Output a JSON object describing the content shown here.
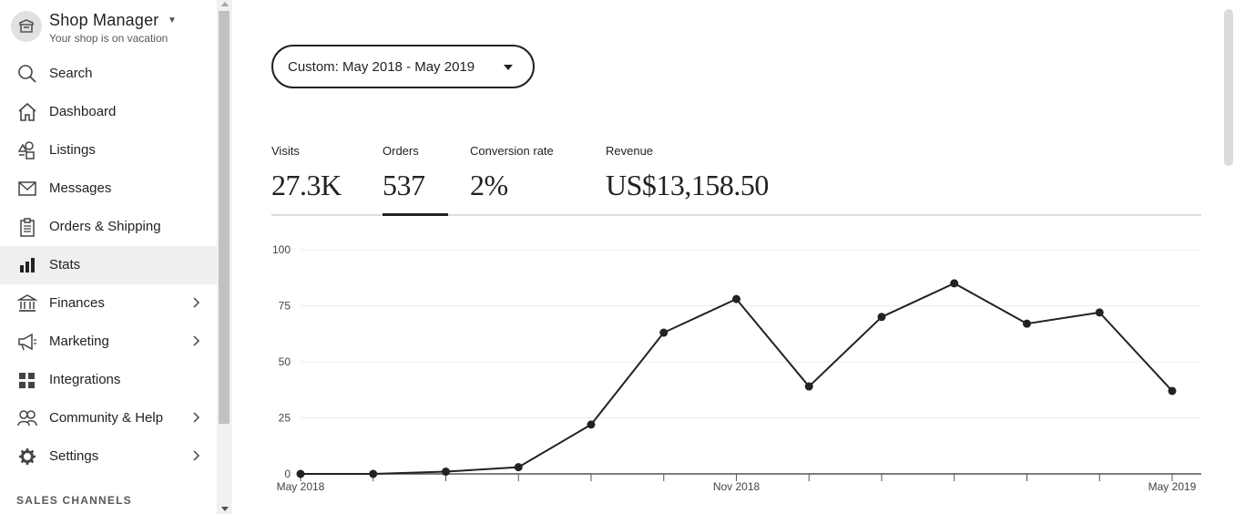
{
  "sidebar": {
    "brand": {
      "title": "Shop Manager",
      "subtitle": "Your shop is on vacation",
      "icon": "etsy-store-icon"
    },
    "items": [
      {
        "label": "Search",
        "icon": "search-icon",
        "has_submenu": false
      },
      {
        "label": "Dashboard",
        "icon": "home-icon",
        "has_submenu": false
      },
      {
        "label": "Listings",
        "icon": "listings-shapes-icon",
        "has_submenu": false
      },
      {
        "label": "Messages",
        "icon": "envelope-icon",
        "has_submenu": false
      },
      {
        "label": "Orders & Shipping",
        "icon": "clipboard-icon",
        "has_submenu": false
      },
      {
        "label": "Stats",
        "icon": "bar-chart-icon",
        "has_submenu": false,
        "active": true
      },
      {
        "label": "Finances",
        "icon": "bank-icon",
        "has_submenu": true
      },
      {
        "label": "Marketing",
        "icon": "megaphone-icon",
        "has_submenu": true
      },
      {
        "label": "Integrations",
        "icon": "grid-icon",
        "has_submenu": false
      },
      {
        "label": "Community & Help",
        "icon": "people-icon",
        "has_submenu": true
      },
      {
        "label": "Settings",
        "icon": "gear-icon",
        "has_submenu": true
      }
    ],
    "section_heading": "SALES CHANNELS"
  },
  "date_filter": {
    "label": "Custom: May 2018 - May 2019"
  },
  "stats_tabs": [
    {
      "label": "Visits",
      "value": "27.3K"
    },
    {
      "label": "Orders",
      "value": "537",
      "selected": true
    },
    {
      "label": "Conversion rate",
      "value": "2%"
    },
    {
      "label": "Revenue",
      "value": "US$13,158.50"
    }
  ],
  "colors": {
    "line": "#222222",
    "grid": "#ececec",
    "active_nav_bg": "#efefef"
  },
  "chart_data": {
    "type": "line",
    "title": "",
    "xlabel": "",
    "ylabel": "",
    "ylim": [
      0,
      100
    ],
    "yticks": [
      0,
      25,
      50,
      75,
      100
    ],
    "x": [
      "2018-05",
      "2018-06",
      "2018-07",
      "2018-08",
      "2018-09",
      "2018-10",
      "2018-11",
      "2018-12",
      "2019-01",
      "2019-02",
      "2019-03",
      "2019-04",
      "2019-05"
    ],
    "x_tick_labels": [
      {
        "index": 0,
        "label": "May 2018"
      },
      {
        "index": 6,
        "label": "Nov 2018"
      },
      {
        "index": 12,
        "label": "May 2019"
      }
    ],
    "series": [
      {
        "values": [
          0,
          0,
          1,
          3,
          22,
          63,
          78,
          39,
          70,
          85,
          67,
          72,
          37
        ]
      }
    ],
    "grid": true,
    "legend": "none"
  }
}
